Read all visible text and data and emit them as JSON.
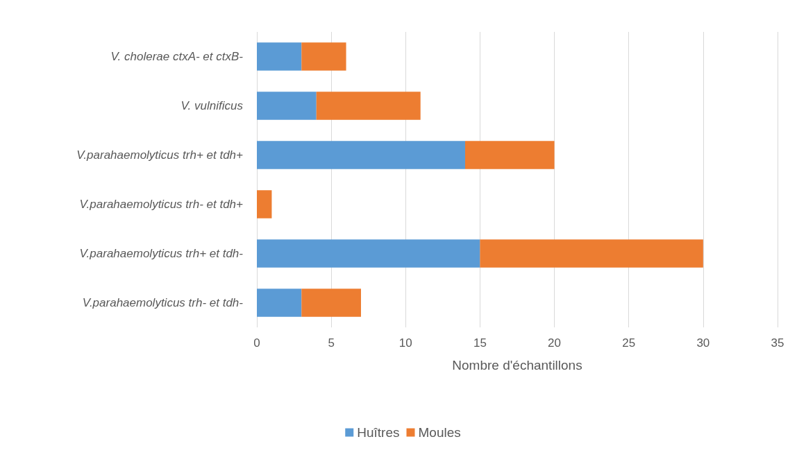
{
  "chart_data": {
    "type": "bar",
    "orientation": "horizontal",
    "stacked": true,
    "xlabel": "Nombre d'échantillons",
    "categories": [
      "V. cholerae ctxA- et ctxB-",
      "V. vulnificus",
      "V.parahaemolyticus trh+ et tdh+",
      "V.parahaemolyticus trh- et tdh+",
      "V.parahaemolyticus trh+ et tdh-",
      "V.parahaemolyticus trh- et tdh-"
    ],
    "series": [
      {
        "name": "Huîtres",
        "color": "#5b9bd5",
        "values": [
          3,
          4,
          14,
          0,
          15,
          3
        ]
      },
      {
        "name": "Moules",
        "color": "#ed7d31",
        "values": [
          3,
          7,
          6,
          1,
          15,
          4
        ]
      }
    ],
    "xlim": [
      0,
      35
    ],
    "xticks": [
      0,
      5,
      10,
      15,
      20,
      25,
      30,
      35
    ],
    "grid": "x",
    "legend": "bottom"
  }
}
